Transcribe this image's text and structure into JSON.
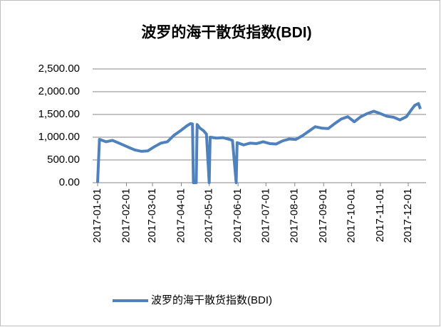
{
  "chart_data": {
    "type": "line",
    "title": "波罗的海干散货指数(BDI)",
    "x": [
      "2017-01-01",
      "2017-01-03",
      "2017-01-10",
      "2017-01-17",
      "2017-01-24",
      "2017-02-03",
      "2017-02-10",
      "2017-02-17",
      "2017-02-24",
      "2017-03-03",
      "2017-03-10",
      "2017-03-17",
      "2017-03-24",
      "2017-03-31",
      "2017-04-07",
      "2017-04-11",
      "2017-04-13",
      "2017-04-14",
      "2017-04-17",
      "2017-04-18",
      "2017-04-21",
      "2017-04-25",
      "2017-04-28",
      "2017-05-01",
      "2017-05-02",
      "2017-05-09",
      "2017-05-16",
      "2017-05-23",
      "2017-05-26",
      "2017-05-30",
      "2017-05-31",
      "2017-06-07",
      "2017-06-14",
      "2017-06-21",
      "2017-06-28",
      "2017-07-05",
      "2017-07-12",
      "2017-07-19",
      "2017-07-26",
      "2017-08-02",
      "2017-08-09",
      "2017-08-16",
      "2017-08-23",
      "2017-08-30",
      "2017-09-06",
      "2017-09-13",
      "2017-09-20",
      "2017-09-27",
      "2017-10-04",
      "2017-10-11",
      "2017-10-18",
      "2017-10-25",
      "2017-11-01",
      "2017-11-08",
      "2017-11-15",
      "2017-11-22",
      "2017-11-29",
      "2017-12-05",
      "2017-12-08",
      "2017-12-12",
      "2017-12-14"
    ],
    "series": [
      {
        "name": "波罗的海干散货指数(BDI)",
        "color": "#4f81bd",
        "values": [
          0,
          953,
          900,
          930,
          870,
          780,
          720,
          690,
          700,
          790,
          870,
          900,
          1040,
          1140,
          1250,
          1300,
          1290,
          0,
          0,
          1280,
          1200,
          1140,
          1070,
          0,
          1000,
          980,
          990,
          950,
          930,
          0,
          880,
          830,
          870,
          860,
          900,
          860,
          850,
          920,
          960,
          950,
          1030,
          1130,
          1230,
          1200,
          1190,
          1300,
          1400,
          1450,
          1340,
          1450,
          1520,
          1570,
          1520,
          1460,
          1440,
          1380,
          1450,
          1620,
          1700,
          1740,
          1620
        ]
      }
    ],
    "xlim": [
      "2017-01-01",
      "2017-12-14"
    ],
    "xticks": [
      "2017-01-01",
      "2017-02-01",
      "2017-03-01",
      "2017-04-01",
      "2017-05-01",
      "2017-06-01",
      "2017-07-01",
      "2017-08-01",
      "2017-09-01",
      "2017-10-01",
      "2017-11-01",
      "2017-12-01"
    ],
    "ylim": [
      0,
      2500
    ],
    "yticks": [
      {
        "value": 0,
        "label": "0.00"
      },
      {
        "value": 500,
        "label": "500.00"
      },
      {
        "value": 1000,
        "label": "1,000.00"
      },
      {
        "value": 1500,
        "label": "1,500.00"
      },
      {
        "value": 2000,
        "label": "2,000.00"
      },
      {
        "value": 2500,
        "label": "2,500.00"
      }
    ],
    "grid": true,
    "legend": "bottom"
  }
}
